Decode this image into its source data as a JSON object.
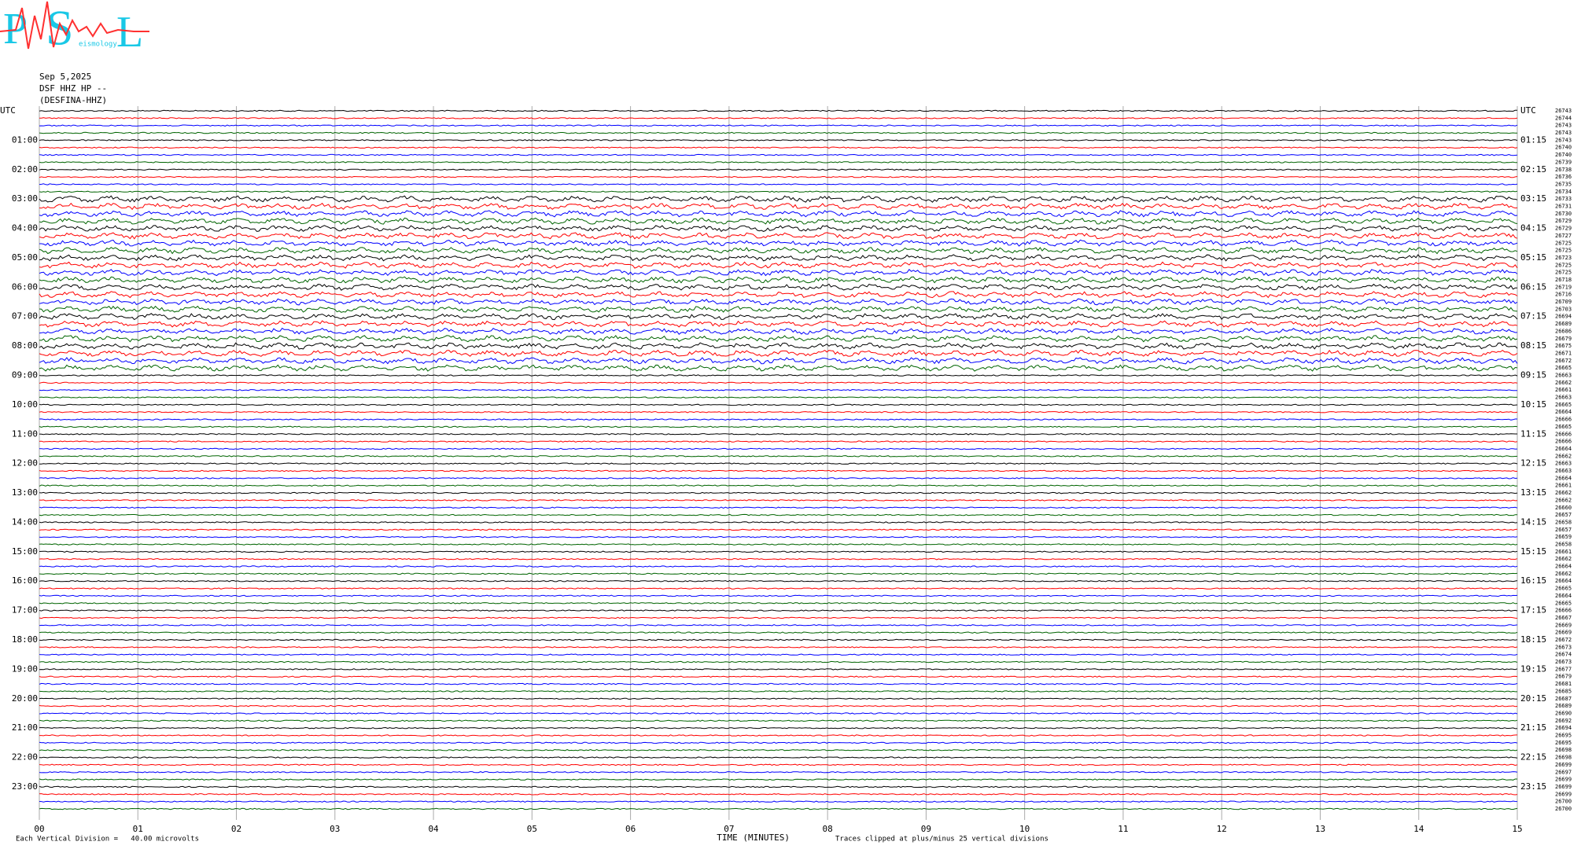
{
  "header": {
    "logo_letters": [
      "P",
      "S",
      "L"
    ],
    "logo_word": "eismology"
  },
  "chart_data": {
    "type": "helicorder",
    "date": "Sep 5,2025",
    "station": "DSF HHZ HP --",
    "station_name": "(DESFINA-HHZ)",
    "xlabel": "TIME (MINUTES)",
    "scale_note": "Each Vertical Division =   40.00 microvolts",
    "clip_note": "Traces clipped at plus/minus 25 vertical divisions",
    "xlim": [
      0,
      15
    ],
    "xticks": [
      {
        "value": 0,
        "label": "00"
      },
      {
        "value": 1,
        "label": "01"
      },
      {
        "value": 2,
        "label": "02"
      },
      {
        "value": 3,
        "label": "03"
      },
      {
        "value": 4,
        "label": "04"
      },
      {
        "value": 5,
        "label": "05"
      },
      {
        "value": 6,
        "label": "06"
      },
      {
        "value": 7,
        "label": "07"
      },
      {
        "value": 8,
        "label": "08"
      },
      {
        "value": 9,
        "label": "09"
      },
      {
        "value": 10,
        "label": "10"
      },
      {
        "value": 11,
        "label": "11"
      },
      {
        "value": 12,
        "label": "12"
      },
      {
        "value": 13,
        "label": "13"
      },
      {
        "value": 14,
        "label": "14"
      },
      {
        "value": 15,
        "label": "15"
      }
    ],
    "grid": true,
    "trace_colors": [
      "#000000",
      "#ff0000",
      "#0000ff",
      "#006400"
    ],
    "left_labels": [
      "UTC",
      "01:00",
      "02:00",
      "03:00",
      "04:00",
      "05:00",
      "06:00",
      "07:00",
      "08:00",
      "09:00",
      "10:00",
      "11:00",
      "12:00",
      "13:00",
      "14:00",
      "15:00",
      "16:00",
      "17:00",
      "18:00",
      "19:00",
      "20:00",
      "21:00",
      "22:00",
      "23:00"
    ],
    "right_labels": [
      "UTC",
      "01:15",
      "02:15",
      "03:15",
      "04:15",
      "05:15",
      "06:15",
      "07:15",
      "08:15",
      "09:15",
      "10:15",
      "11:15",
      "12:15",
      "13:15",
      "14:15",
      "15:15",
      "16:15",
      "17:15",
      "18:15",
      "19:15",
      "20:15",
      "21:15",
      "22:15",
      "23:15"
    ],
    "right_values": [
      26743,
      26744,
      26743,
      26743,
      26743,
      26740,
      26740,
      26739,
      26738,
      26736,
      26735,
      26734,
      26733,
      26731,
      26730,
      26729,
      26729,
      26727,
      26725,
      26725,
      26723,
      26725,
      26725,
      26718,
      26719,
      26716,
      26709,
      26703,
      26694,
      26689,
      26686,
      26679,
      26675,
      26671,
      26672,
      26665,
      26663,
      26662,
      26661,
      26663,
      26665,
      26664,
      26666,
      26665,
      26666,
      26666,
      26664,
      26662,
      26663,
      26663,
      26664,
      26661,
      26662,
      26662,
      26660,
      26657,
      26658,
      26657,
      26659,
      26658,
      26661,
      26662,
      26664,
      26662,
      26664,
      26665,
      26664,
      26665,
      26666,
      26667,
      26669,
      26669,
      26672,
      26673,
      26674,
      26673,
      26677,
      26679,
      26681,
      26685,
      26687,
      26689,
      26690,
      26692,
      26694,
      26695,
      26695,
      26698,
      26698,
      26699,
      26697,
      26699,
      26699,
      26699,
      26700,
      26700
    ]
  }
}
